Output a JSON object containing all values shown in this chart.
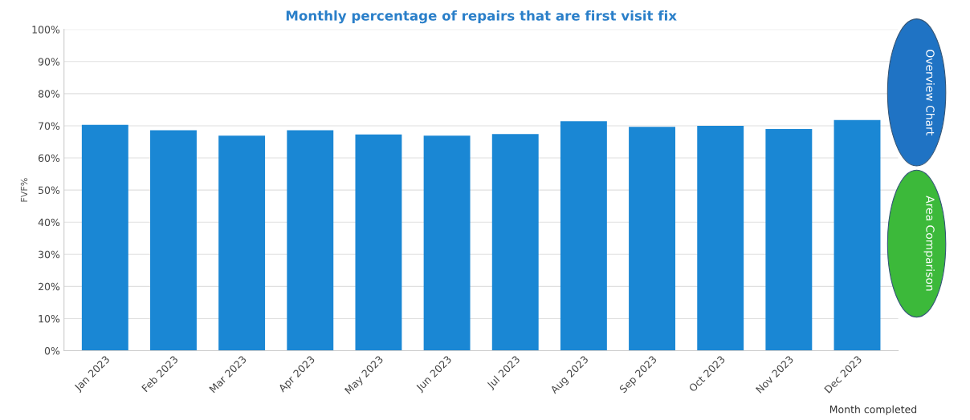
{
  "chart_data": {
    "type": "bar",
    "title": "Monthly percentage of repairs that are first visit fix",
    "xlabel": "Month completed",
    "ylabel": "FVF%",
    "categories": [
      "Jan 2023",
      "Feb 2023",
      "Mar 2023",
      "Apr 2023",
      "May 2023",
      "Jun 2023",
      "Jul 2023",
      "Aug 2023",
      "Sep 2023",
      "Oct 2023",
      "Nov 2023",
      "Dec 2023"
    ],
    "values": [
      70.3,
      68.6,
      66.9,
      68.6,
      67.3,
      66.9,
      67.4,
      71.4,
      69.7,
      70.0,
      69.0,
      71.8
    ],
    "color": "#1a87d4",
    "ylim": [
      0,
      100
    ],
    "yticks": [
      {
        "value": 0,
        "label": "0%"
      },
      {
        "value": 10,
        "label": "10%"
      },
      {
        "value": 20,
        "label": "20%"
      },
      {
        "value": 30,
        "label": "30%"
      },
      {
        "value": 40,
        "label": "40%"
      },
      {
        "value": 50,
        "label": "50%"
      },
      {
        "value": 60,
        "label": "60%"
      },
      {
        "value": 70,
        "label": "70%"
      },
      {
        "value": 80,
        "label": "80%"
      },
      {
        "value": 90,
        "label": "90%"
      },
      {
        "value": 100,
        "label": "100%"
      }
    ],
    "grid": "y",
    "annotations": [
      "Overview Chart",
      "Area Comparison"
    ]
  }
}
